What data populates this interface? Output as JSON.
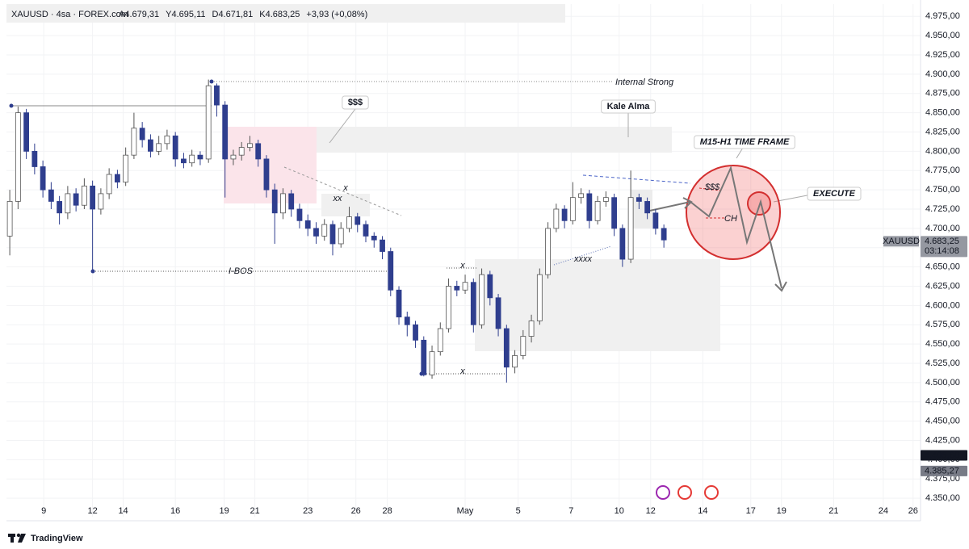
{
  "header": {
    "symbol": "XAUUSD · 4sa · FOREX.com",
    "ohlc": [
      "A4.679,31",
      "Y4.695,11",
      "D4.671,81",
      "K4.683,25",
      "+3,93 (+0,08%)"
    ]
  },
  "chart_data": {
    "type": "candlestick",
    "x": [
      0,
      1,
      2,
      3,
      4,
      5,
      6,
      7,
      8,
      9,
      10,
      11,
      12,
      13,
      14,
      15,
      16,
      17,
      18,
      19,
      20,
      21,
      22,
      23,
      24,
      25,
      26,
      27,
      28,
      29,
      30,
      31,
      32,
      33,
      34,
      35,
      36,
      37,
      38,
      39,
      40,
      41,
      42,
      43,
      44,
      45,
      46,
      47,
      48,
      49,
      50,
      51,
      52,
      53,
      54,
      55,
      56,
      57,
      58,
      59,
      60,
      61,
      62,
      63,
      64,
      65,
      66,
      67,
      68,
      69,
      70,
      71,
      72,
      73,
      74,
      75,
      76,
      77,
      78,
      79
    ],
    "open": [
      4690,
      4735,
      4850,
      4800,
      4780,
      4750,
      4735,
      4720,
      4745,
      4730,
      4755,
      4725,
      4745,
      4770,
      4760,
      4795,
      4830,
      4815,
      4800,
      4810,
      4820,
      4790,
      4785,
      4795,
      4790,
      4885,
      4860,
      4790,
      4795,
      4805,
      4810,
      4790,
      4750,
      4720,
      4745,
      4725,
      4710,
      4700,
      4690,
      4705,
      4680,
      4700,
      4715,
      4705,
      4690,
      4685,
      4670,
      4620,
      4585,
      4575,
      4555,
      4510,
      4540,
      4570,
      4625,
      4620,
      4630,
      4575,
      4640,
      4610,
      4570,
      4520,
      4535,
      4560,
      4580,
      4640,
      4700,
      4725,
      4710,
      4740,
      4745,
      4710,
      4735,
      4740,
      4700,
      4660,
      4740,
      4735,
      4720,
      4700
    ],
    "high": [
      4750,
      4858,
      4855,
      4810,
      4788,
      4760,
      4742,
      4755,
      4752,
      4765,
      4762,
      4752,
      4778,
      4776,
      4805,
      4850,
      4838,
      4822,
      4820,
      4828,
      4825,
      4798,
      4802,
      4800,
      4893,
      4888,
      4865,
      4802,
      4812,
      4820,
      4815,
      4795,
      4758,
      4752,
      4750,
      4732,
      4718,
      4708,
      4712,
      4710,
      4708,
      4728,
      4720,
      4710,
      4695,
      4690,
      4675,
      4625,
      4592,
      4580,
      4560,
      4548,
      4578,
      4635,
      4632,
      4640,
      4635,
      4648,
      4645,
      4615,
      4575,
      4542,
      4568,
      4588,
      4648,
      4708,
      4732,
      4730,
      4760,
      4752,
      4750,
      4742,
      4748,
      4745,
      4705,
      4775,
      4745,
      4740,
      4725,
      4705
    ],
    "low": [
      4665,
      4725,
      4790,
      4770,
      4740,
      4725,
      4705,
      4712,
      4722,
      4725,
      4645,
      4718,
      4738,
      4752,
      4755,
      4790,
      4805,
      4792,
      4795,
      4802,
      4780,
      4778,
      4780,
      4782,
      4785,
      4845,
      4740,
      4782,
      4788,
      4800,
      4780,
      4740,
      4680,
      4712,
      4715,
      4700,
      4690,
      4680,
      4684,
      4665,
      4675,
      4695,
      4695,
      4682,
      4675,
      4660,
      4612,
      4575,
      4560,
      4545,
      4508,
      4505,
      4535,
      4565,
      4612,
      4615,
      4565,
      4570,
      4600,
      4560,
      4500,
      4512,
      4530,
      4552,
      4575,
      4635,
      4695,
      4700,
      4705,
      4732,
      4700,
      4705,
      4728,
      4690,
      4650,
      4655,
      4725,
      4712,
      4692,
      4675
    ],
    "close": [
      4735,
      4850,
      4800,
      4780,
      4750,
      4735,
      4720,
      4745,
      4730,
      4755,
      4725,
      4745,
      4770,
      4760,
      4795,
      4830,
      4815,
      4800,
      4810,
      4820,
      4790,
      4785,
      4795,
      4790,
      4885,
      4860,
      4790,
      4795,
      4805,
      4810,
      4790,
      4750,
      4720,
      4745,
      4725,
      4710,
      4700,
      4690,
      4705,
      4680,
      4700,
      4715,
      4705,
      4690,
      4685,
      4670,
      4620,
      4585,
      4575,
      4555,
      4510,
      4540,
      4570,
      4625,
      4620,
      4630,
      4575,
      4640,
      4610,
      4570,
      4520,
      4535,
      4560,
      4580,
      4640,
      4700,
      4725,
      4710,
      4740,
      4745,
      4710,
      4735,
      4740,
      4700,
      4660,
      4740,
      4735,
      4720,
      4700,
      4685
    ],
    "up_color": "#ffffff",
    "down_color": "#2f3e8e",
    "grid": true,
    "xlim": [
      -0.4,
      110
    ],
    "ylim": [
      4326,
      4991
    ],
    "xticks": [
      {
        "value": 4.1,
        "label": "9"
      },
      {
        "value": 10,
        "label": "12"
      },
      {
        "value": 13.7,
        "label": "14"
      },
      {
        "value": 20,
        "label": "16"
      },
      {
        "value": 25.9,
        "label": "19"
      },
      {
        "value": 29.6,
        "label": "21"
      },
      {
        "value": 36,
        "label": "23"
      },
      {
        "value": 41.8,
        "label": "26"
      },
      {
        "value": 45.6,
        "label": "28"
      },
      {
        "value": 55,
        "label": "May"
      },
      {
        "value": 61.4,
        "label": "5"
      },
      {
        "value": 67.8,
        "label": "7"
      },
      {
        "value": 73.6,
        "label": "10"
      },
      {
        "value": 77.4,
        "label": "12"
      },
      {
        "value": 83.7,
        "label": "14"
      },
      {
        "value": 89.5,
        "label": "17"
      },
      {
        "value": 93.2,
        "label": "19"
      },
      {
        "value": 99.5,
        "label": "21"
      },
      {
        "value": 105.5,
        "label": "24"
      },
      {
        "value": 109.1,
        "label": "26"
      }
    ],
    "yticks": [
      {
        "value": 4350,
        "label": "4.350,00"
      },
      {
        "value": 4375,
        "label": "4.375,00"
      },
      {
        "value": 4400,
        "label": "4.400,00"
      },
      {
        "value": 4425,
        "label": "4.425,00"
      },
      {
        "value": 4450,
        "label": "4.450,00"
      },
      {
        "value": 4475,
        "label": "4.475,00"
      },
      {
        "value": 4500,
        "label": "4.500,00"
      },
      {
        "value": 4525,
        "label": "4.525,00"
      },
      {
        "value": 4550,
        "label": "4.550,00"
      },
      {
        "value": 4575,
        "label": "4.575,00"
      },
      {
        "value": 4600,
        "label": "4.600,00"
      },
      {
        "value": 4625,
        "label": "4.625,00"
      },
      {
        "value": 4650,
        "label": "4.650,00"
      },
      {
        "value": 4675,
        "label": "4.675,00"
      },
      {
        "value": 4700,
        "label": "4.700,00"
      },
      {
        "value": 4725,
        "label": "4.725,00"
      },
      {
        "value": 4750,
        "label": "4.750,00"
      },
      {
        "value": 4775,
        "label": "4.775,00"
      },
      {
        "value": 4800,
        "label": "4.800,00"
      },
      {
        "value": 4825,
        "label": "4.825,00"
      },
      {
        "value": 4850,
        "label": "4.850,00"
      },
      {
        "value": 4875,
        "label": "4.875,00"
      },
      {
        "value": 4900,
        "label": "4.900,00"
      },
      {
        "value": 4925,
        "label": "4.925,00"
      },
      {
        "value": 4950,
        "label": "4.950,00"
      },
      {
        "value": 4975,
        "label": "4.975,00"
      }
    ],
    "price_tags": [
      {
        "value": 4683.25,
        "label": "4.683,25",
        "symbol": "XAUUSD",
        "countdown": "03:14:08",
        "color": "#9598a1"
      },
      {
        "value": 4405.6,
        "label": "4.405,60",
        "color": "#131722"
      },
      {
        "value": 4385.27,
        "label": "4.385,27",
        "color": "#787b86"
      }
    ],
    "annotations": [
      "Internal Strong",
      "$$$",
      "Kale Alma",
      "M15-H1 TIME FRAME",
      "EXECUTE",
      "$$$",
      "CH",
      "I-BOS",
      "x",
      "xx",
      "x",
      "x",
      "xxxx"
    ]
  },
  "logo": "TradingView"
}
